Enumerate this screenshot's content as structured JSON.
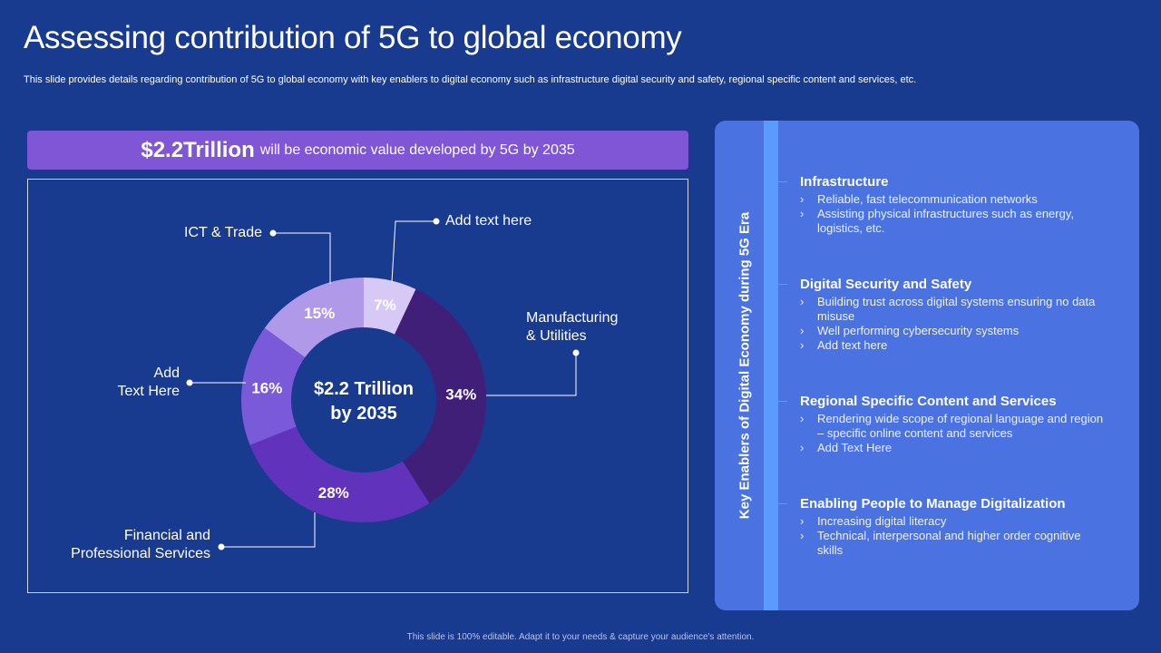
{
  "slide": {
    "title": "Assessing contribution of 5G to global economy",
    "subtitle": "This slide provides details regarding contribution of 5G to global economy with key enablers to digital economy such as infrastructure digital security and safety, regional specific content and services, etc.",
    "footer": "This slide is 100% editable. Adapt it to your needs & capture your audience's attention."
  },
  "banner": {
    "highlight": "$2.2Trillion",
    "text": "will be economic value developed by 5G by 2035"
  },
  "chart_data": {
    "type": "pie",
    "variant": "donut",
    "center_line1": "$2.2 Trillion",
    "center_line2": "by 2035",
    "slices": [
      {
        "label": "Add text here",
        "value": 7,
        "display": "7%",
        "color": "#d6c9f5"
      },
      {
        "label": "Manufacturing & Utilities",
        "value": 34,
        "display": "34%",
        "color": "#3f1f78"
      },
      {
        "label": "Financial and Professional Services",
        "value": 28,
        "display": "28%",
        "color": "#6133bd"
      },
      {
        "label": "Add Text Here",
        "value": 16,
        "display": "16%",
        "color": "#7b5ad9"
      },
      {
        "label": "ICT & Trade",
        "value": 15,
        "display": "15%",
        "color": "#b099e8"
      }
    ]
  },
  "labels": {
    "add_text_top": "Add text here",
    "manufacturing_l1": "Manufacturing",
    "manufacturing_l2": "& Utilities",
    "financial_l1": "Financial and",
    "financial_l2": "Professional Services",
    "add_text_left_l1": "Add",
    "add_text_left_l2": "Text Here",
    "ict": "ICT & Trade"
  },
  "panel": {
    "vertical_title": "Key Enablers of Digital Economy during 5G Era",
    "sections": [
      {
        "heading": "Infrastructure",
        "items": [
          "Reliable, fast telecommunication networks",
          "Assisting physical infrastructures such as energy, logistics, etc."
        ]
      },
      {
        "heading": "Digital Security and Safety",
        "items": [
          "Building trust across digital systems ensuring no data misuse",
          "Well performing cybersecurity systems",
          "Add text here"
        ]
      },
      {
        "heading": "Regional Specific Content and Services",
        "items": [
          "Rendering wide scope of regional language and region – specific online content and services",
          "Add Text Here"
        ]
      },
      {
        "heading": "Enabling People to Manage Digitalization",
        "items": [
          "Increasing digital literacy",
          "Technical, interpersonal and higher order cognitive skills"
        ]
      }
    ]
  }
}
